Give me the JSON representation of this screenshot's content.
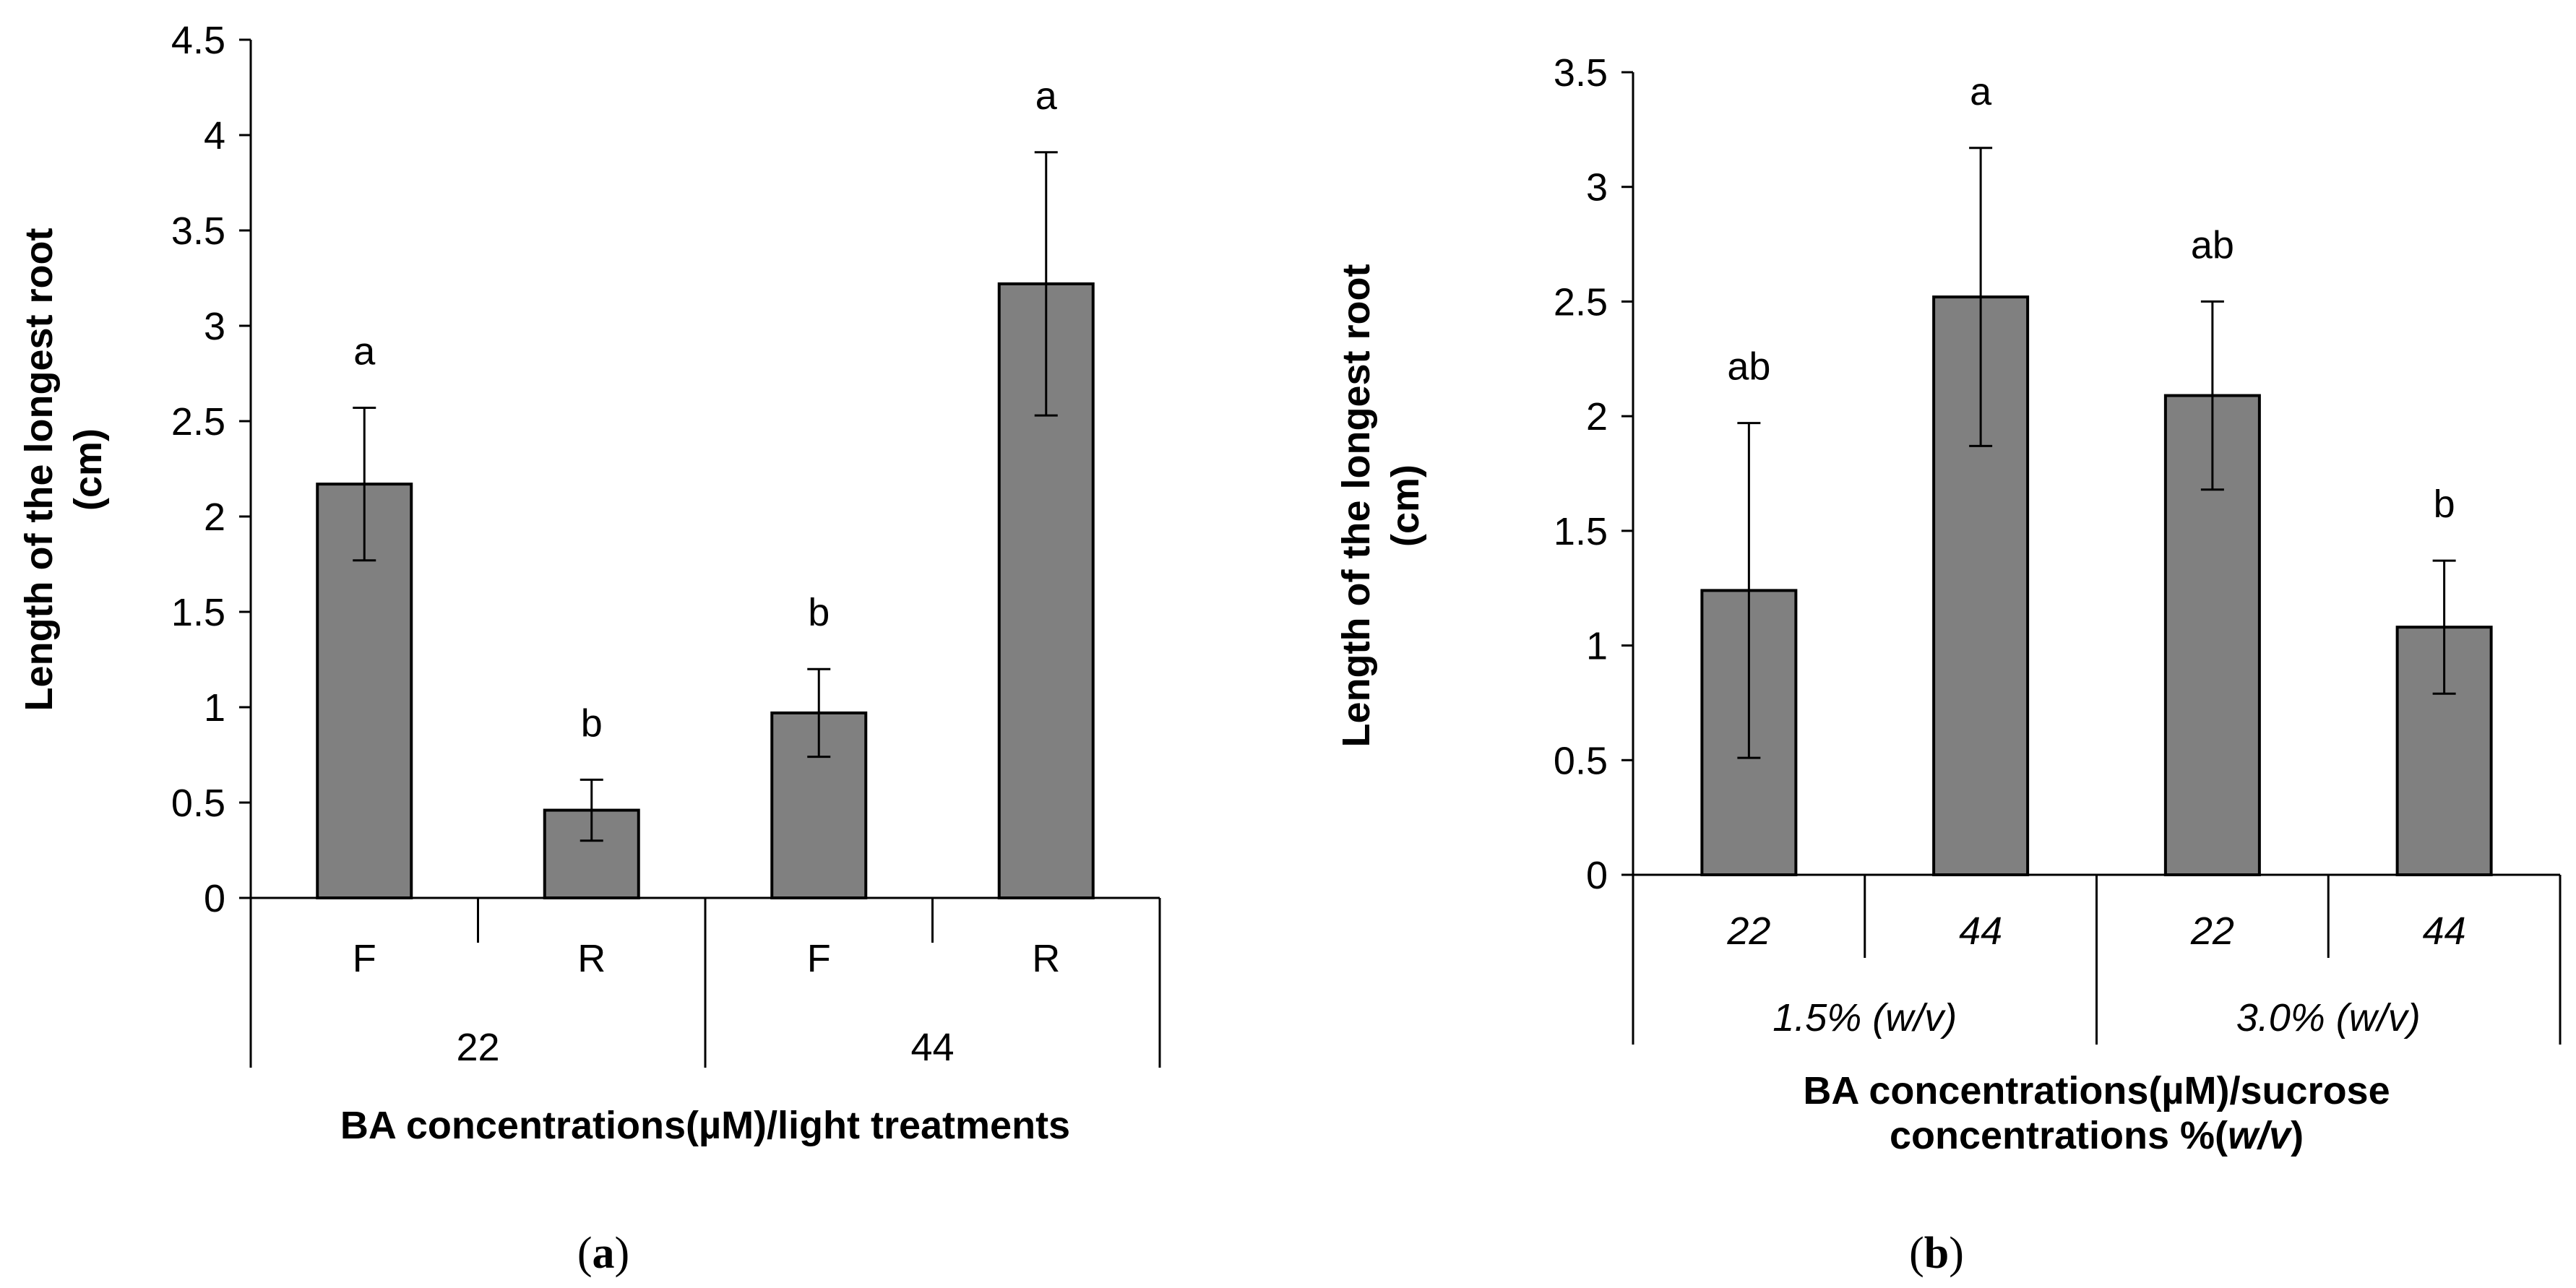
{
  "chart_data": [
    {
      "id": "a",
      "type": "bar",
      "panel_label": "a",
      "xlabel": "BA concentrations(µM)/light treatments",
      "ylabel_lines": [
        "Length of the longest  root",
        "(cm)"
      ],
      "ylim": [
        0,
        4.5
      ],
      "yticks": [
        "0",
        "0.5",
        "1",
        "1.5",
        "2",
        "2.5",
        "3",
        "3.5",
        "4",
        "4.5"
      ],
      "group_labels": [
        "22",
        "44"
      ],
      "categories": [
        "F",
        "R",
        "F",
        "R"
      ],
      "groups": [
        "22",
        "22",
        "44",
        "44"
      ],
      "values": [
        2.17,
        0.46,
        0.97,
        3.22
      ],
      "errors": [
        0.4,
        0.16,
        0.23,
        0.69
      ],
      "significance": [
        "a",
        "b",
        "b",
        "a"
      ],
      "bar_color": "#808080"
    },
    {
      "id": "b",
      "type": "bar",
      "panel_label": "b",
      "xlabel_lines": [
        [
          "BA concentrations(µM)/sucrose"
        ],
        [
          "concentrations %(",
          "w/v",
          ")"
        ]
      ],
      "ylabel_lines": [
        "Length of the longest  root",
        "(cm)"
      ],
      "ylim": [
        0,
        3.5
      ],
      "yticks": [
        "0",
        "0.5",
        "1",
        "1.5",
        "2",
        "2.5",
        "3",
        "3.5"
      ],
      "group_labels": [
        "1.5% (w/v)",
        "3.0% (w/v)"
      ],
      "categories": [
        "22",
        "44",
        "22",
        "44"
      ],
      "groups": [
        "1.5% (w/v)",
        "1.5% (w/v)",
        "3.0% (w/v)",
        "3.0% (w/v)"
      ],
      "values": [
        1.24,
        2.52,
        2.09,
        1.08
      ],
      "errors": [
        0.73,
        0.65,
        0.41,
        0.29
      ],
      "significance": [
        "ab",
        "a",
        "ab",
        "b"
      ],
      "bar_color": "#808080"
    }
  ]
}
